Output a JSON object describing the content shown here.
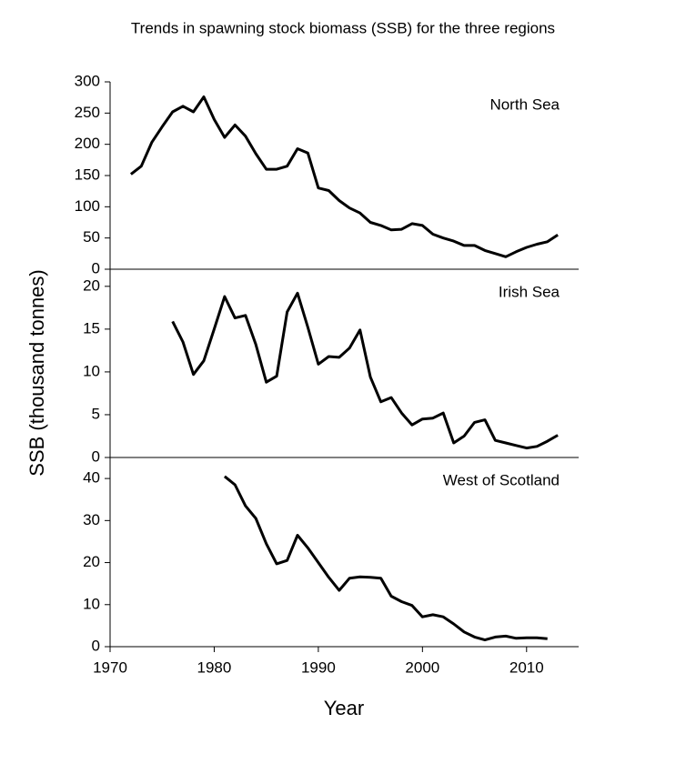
{
  "title": "Trends in spawning stock biomass (SSB) for the three regions",
  "ylabel": "SSB (thousand tonnes)",
  "xlabel": "Year",
  "chart_data": [
    {
      "type": "line",
      "x": [
        1972,
        1973,
        1974,
        1975,
        1976,
        1977,
        1978,
        1979,
        1980,
        1981,
        1982,
        1983,
        1984,
        1985,
        1986,
        1987,
        1988,
        1989,
        1990,
        1991,
        1992,
        1993,
        1994,
        1995,
        1996,
        1997,
        1998,
        1999,
        2000,
        2001,
        2002,
        2003,
        2004,
        2005,
        2006,
        2007,
        2008,
        2009,
        2010,
        2011,
        2012,
        2013
      ],
      "series": [
        {
          "name": "North Sea",
          "color": "#000000",
          "values": [
            152,
            165,
            203,
            228,
            252,
            261,
            252,
            276,
            240,
            211,
            231,
            213,
            185,
            160,
            160,
            165,
            193,
            186,
            130,
            126,
            110,
            98,
            90,
            75,
            70,
            63,
            64,
            73,
            70,
            56,
            50,
            45,
            38,
            38,
            30,
            25,
            20,
            28,
            35,
            40,
            44,
            55
          ]
        }
      ],
      "xlim": [
        1970,
        2015
      ],
      "ylim": [
        0,
        300
      ],
      "yticks": [
        0,
        50,
        100,
        150,
        200,
        250,
        300
      ]
    },
    {
      "type": "line",
      "x": [
        1976,
        1977,
        1978,
        1979,
        1980,
        1981,
        1982,
        1983,
        1984,
        1985,
        1986,
        1987,
        1988,
        1989,
        1990,
        1991,
        1992,
        1993,
        1994,
        1995,
        1996,
        1997,
        1998,
        1999,
        2000,
        2001,
        2002,
        2003,
        2004,
        2005,
        2006,
        2007,
        2008,
        2009,
        2010,
        2011,
        2012,
        2013
      ],
      "series": [
        {
          "name": "Irish Sea",
          "color": "#000000",
          "values": [
            15.9,
            13.5,
            9.7,
            11.3,
            15.0,
            18.8,
            16.3,
            16.6,
            13.2,
            8.8,
            9.5,
            17.0,
            19.2,
            15.2,
            10.9,
            11.8,
            11.7,
            12.8,
            14.9,
            9.4,
            6.5,
            7.0,
            5.2,
            3.8,
            4.5,
            4.6,
            5.2,
            1.7,
            2.5,
            4.1,
            4.4,
            2.0,
            1.7,
            1.4,
            1.1,
            1.3,
            1.9,
            2.6
          ]
        }
      ],
      "xlim": [
        1970,
        2015
      ],
      "ylim": [
        0,
        22
      ],
      "yticks": [
        0,
        5,
        10,
        15,
        20
      ]
    },
    {
      "type": "line",
      "x": [
        1981,
        1982,
        1983,
        1984,
        1985,
        1986,
        1987,
        1988,
        1989,
        1990,
        1991,
        1992,
        1993,
        1994,
        1995,
        1996,
        1997,
        1998,
        1999,
        2000,
        2001,
        2002,
        2003,
        2004,
        2005,
        2006,
        2007,
        2008,
        2009,
        2010,
        2011,
        2012
      ],
      "series": [
        {
          "name": "West of Scotland",
          "color": "#000000",
          "values": [
            40.5,
            38.5,
            33.5,
            30.5,
            24.5,
            19.7,
            20.5,
            26.5,
            23.5,
            20,
            16.5,
            13.4,
            16.3,
            16.6,
            16.5,
            16.3,
            12,
            10.7,
            9.8,
            7.1,
            7.6,
            7.1,
            5.4,
            3.5,
            2.3,
            1.6,
            2.3,
            2.5,
            2.0,
            2.1,
            2.1,
            1.9
          ]
        }
      ],
      "xlim": [
        1970,
        2015
      ],
      "ylim": [
        0,
        45
      ],
      "yticks": [
        0,
        10,
        20,
        30,
        40
      ],
      "xticks": [
        1970,
        1980,
        1990,
        2000,
        2010
      ]
    }
  ]
}
